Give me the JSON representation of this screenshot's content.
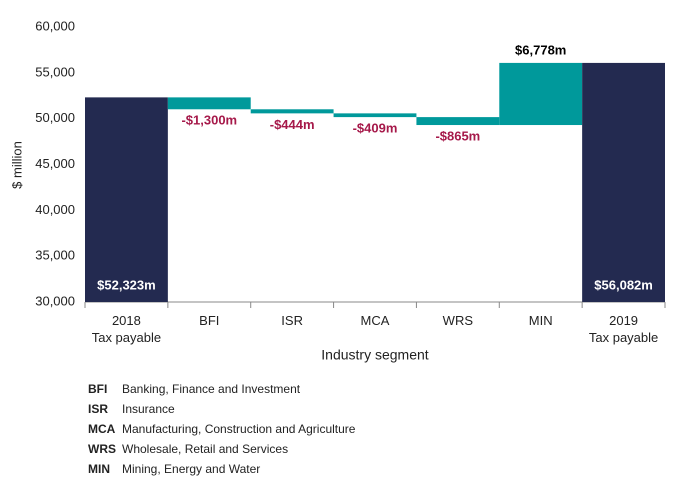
{
  "chart_data": {
    "type": "waterfall",
    "ylabel": "$ million",
    "xlabel": "Industry segment",
    "categories": [
      "2018\nTax payable",
      "BFI",
      "ISR",
      "MCA",
      "WRS",
      "MIN",
      "2019\nTax payable"
    ],
    "values": [
      52323,
      -1300,
      -444,
      -409,
      -865,
      6778,
      56082
    ],
    "value_labels": [
      "$52,323m",
      "-$1,300m",
      "-$444m",
      "-$409m",
      "-$865m",
      "$6,778m",
      "$56,082m"
    ],
    "measure": [
      "absolute",
      "relative",
      "relative",
      "relative",
      "relative",
      "relative",
      "total"
    ],
    "total_color": "#232a50",
    "change_color": "#00999b",
    "negative_label_color": "#a6194a",
    "positive_label_color": "#000000",
    "total_label_color": "#ffffff",
    "ylim": [
      30000,
      60000
    ],
    "yticks": [
      {
        "value": 30000,
        "label": "30,000"
      },
      {
        "value": 35000,
        "label": "35,000"
      },
      {
        "value": 40000,
        "label": "40,000"
      },
      {
        "value": 45000,
        "label": "45,000"
      },
      {
        "value": 50000,
        "label": "50,000"
      },
      {
        "value": 55000,
        "label": "55,000"
      },
      {
        "value": 60000,
        "label": "60,000"
      }
    ],
    "grid": false
  },
  "abbreviations": [
    {
      "abbr": "BFI",
      "text": "Banking, Finance and Investment"
    },
    {
      "abbr": "ISR",
      "text": "Insurance"
    },
    {
      "abbr": "MCA",
      "text": "Manufacturing, Construction and Agriculture"
    },
    {
      "abbr": "WRS",
      "text": "Wholesale, Retail and Services"
    },
    {
      "abbr": "MIN",
      "text": "Mining, Energy and Water"
    }
  ]
}
